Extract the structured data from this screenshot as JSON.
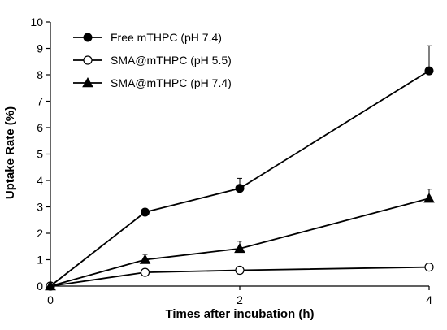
{
  "chart_data": {
    "type": "line",
    "title": "",
    "xlabel": "Times after incubation (h)",
    "ylabel": "Uptake Rate (%)",
    "xlim": [
      0,
      4
    ],
    "ylim": [
      0,
      10
    ],
    "xticks": [
      0,
      2,
      4
    ],
    "yticks": [
      0,
      1,
      2,
      3,
      4,
      5,
      6,
      7,
      8,
      9,
      10
    ],
    "grid": false,
    "legend_position": "top-left",
    "series": [
      {
        "name": "Free mTHPC (pH 7.4)",
        "marker": "filled-circle",
        "x": [
          0,
          1,
          2,
          4
        ],
        "y": [
          0.0,
          2.8,
          3.7,
          8.15
        ],
        "error": [
          0,
          0,
          0.38,
          0.95
        ]
      },
      {
        "name": "SMA@mTHPC (pH 5.5)",
        "marker": "open-circle",
        "x": [
          0,
          1,
          2,
          4
        ],
        "y": [
          0.0,
          0.52,
          0.6,
          0.72
        ],
        "error": [
          0,
          0,
          0,
          0
        ]
      },
      {
        "name": "SMA@mTHPC (pH 7.4)",
        "marker": "filled-triangle",
        "x": [
          0,
          1,
          2,
          4
        ],
        "y": [
          0.0,
          1.0,
          1.42,
          3.32
        ],
        "error": [
          0,
          0.2,
          0.28,
          0.35
        ]
      }
    ]
  }
}
